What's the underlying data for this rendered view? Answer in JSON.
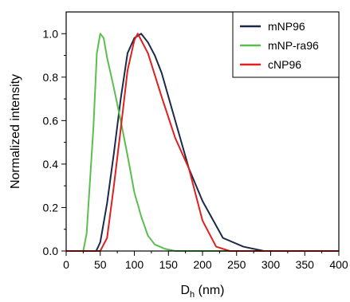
{
  "chart_data": {
    "type": "line",
    "xlabel_main": "D",
    "xlabel_sub": "h",
    "xlabel_unit": " (nm)",
    "ylabel": "Normalized intensity",
    "xlim": [
      0,
      400
    ],
    "ylim": [
      0,
      1.1
    ],
    "xticks": [
      0,
      50,
      100,
      150,
      200,
      250,
      300,
      350,
      400
    ],
    "yticks": [
      0.0,
      0.2,
      0.4,
      0.6,
      0.8,
      1.0
    ],
    "ytick_labels": [
      "0.0",
      "0.2",
      "0.4",
      "0.6",
      "0.8",
      "1.0"
    ],
    "grid": false,
    "legend_position": "top-right",
    "series": [
      {
        "name": "mNP96",
        "color": "#1b2a4a",
        "x": [
          0,
          44,
          50,
          60,
          70,
          80,
          90,
          100,
          110,
          120,
          130,
          140,
          160,
          180,
          200,
          230,
          260,
          290,
          300,
          400
        ],
        "y": [
          0,
          0,
          0.04,
          0.22,
          0.45,
          0.7,
          0.91,
          0.98,
          1.0,
          0.96,
          0.9,
          0.82,
          0.6,
          0.38,
          0.23,
          0.06,
          0.02,
          0.0,
          0,
          0
        ]
      },
      {
        "name": "mNP-ra96",
        "color": "#5bbf4f",
        "x": [
          0,
          25,
          30,
          40,
          45,
          50,
          55,
          60,
          70,
          80,
          90,
          100,
          110,
          120,
          130,
          145,
          160,
          170,
          400
        ],
        "y": [
          0,
          0,
          0.08,
          0.57,
          0.91,
          1.0,
          0.98,
          0.89,
          0.75,
          0.6,
          0.44,
          0.27,
          0.16,
          0.07,
          0.03,
          0.01,
          0.0,
          0,
          0
        ]
      },
      {
        "name": "cNP96",
        "color": "#e02020",
        "x": [
          0,
          50,
          60,
          70,
          80,
          90,
          100,
          105,
          120,
          140,
          160,
          180,
          200,
          220,
          240,
          400
        ],
        "y": [
          0,
          0,
          0.06,
          0.3,
          0.56,
          0.83,
          0.97,
          1.0,
          0.91,
          0.71,
          0.52,
          0.38,
          0.14,
          0.02,
          0.0,
          0
        ]
      }
    ]
  }
}
